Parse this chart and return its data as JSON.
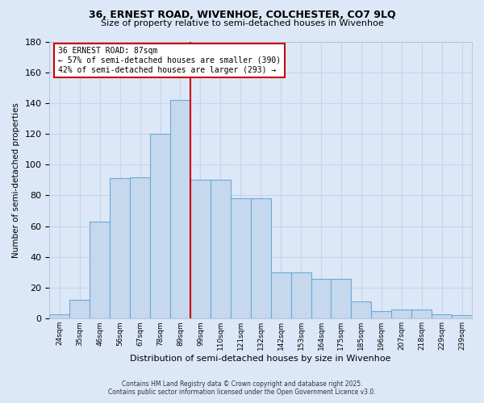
{
  "title1": "36, ERNEST ROAD, WIVENHOE, COLCHESTER, CO7 9LQ",
  "title2": "Size of property relative to semi-detached houses in Wivenhoe",
  "xlabel": "Distribution of semi-detached houses by size in Wivenhoe",
  "ylabel": "Number of semi-detached properties",
  "bar_labels": [
    "24sqm",
    "35sqm",
    "46sqm",
    "56sqm",
    "67sqm",
    "78sqm",
    "89sqm",
    "99sqm",
    "110sqm",
    "121sqm",
    "132sqm",
    "142sqm",
    "153sqm",
    "164sqm",
    "175sqm",
    "185sqm",
    "196sqm",
    "207sqm",
    "218sqm",
    "229sqm",
    "239sqm"
  ],
  "bar_values": [
    3,
    12,
    63,
    91,
    92,
    120,
    142,
    90,
    90,
    78,
    78,
    30,
    30,
    26,
    26,
    11,
    5,
    6,
    6,
    3,
    2
  ],
  "bar_color": "#c5d8ee",
  "bar_edge_color": "#6aaad4",
  "grid_color": "#c8d4e8",
  "bg_color": "#dce8f8",
  "vline_x_index": 6,
  "vline_color": "#cc0000",
  "annotation_title": "36 ERNEST ROAD: 87sqm",
  "annotation_line1": "← 57% of semi-detached houses are smaller (390)",
  "annotation_line2": "42% of semi-detached houses are larger (293) →",
  "annotation_box_color": "#ffffff",
  "annotation_box_edge": "#cc0000",
  "footer1": "Contains HM Land Registry data © Crown copyright and database right 2025.",
  "footer2": "Contains public sector information licensed under the Open Government Licence v3.0.",
  "ylim": [
    0,
    180
  ],
  "yticks": [
    0,
    20,
    40,
    60,
    80,
    100,
    120,
    140,
    160,
    180
  ]
}
